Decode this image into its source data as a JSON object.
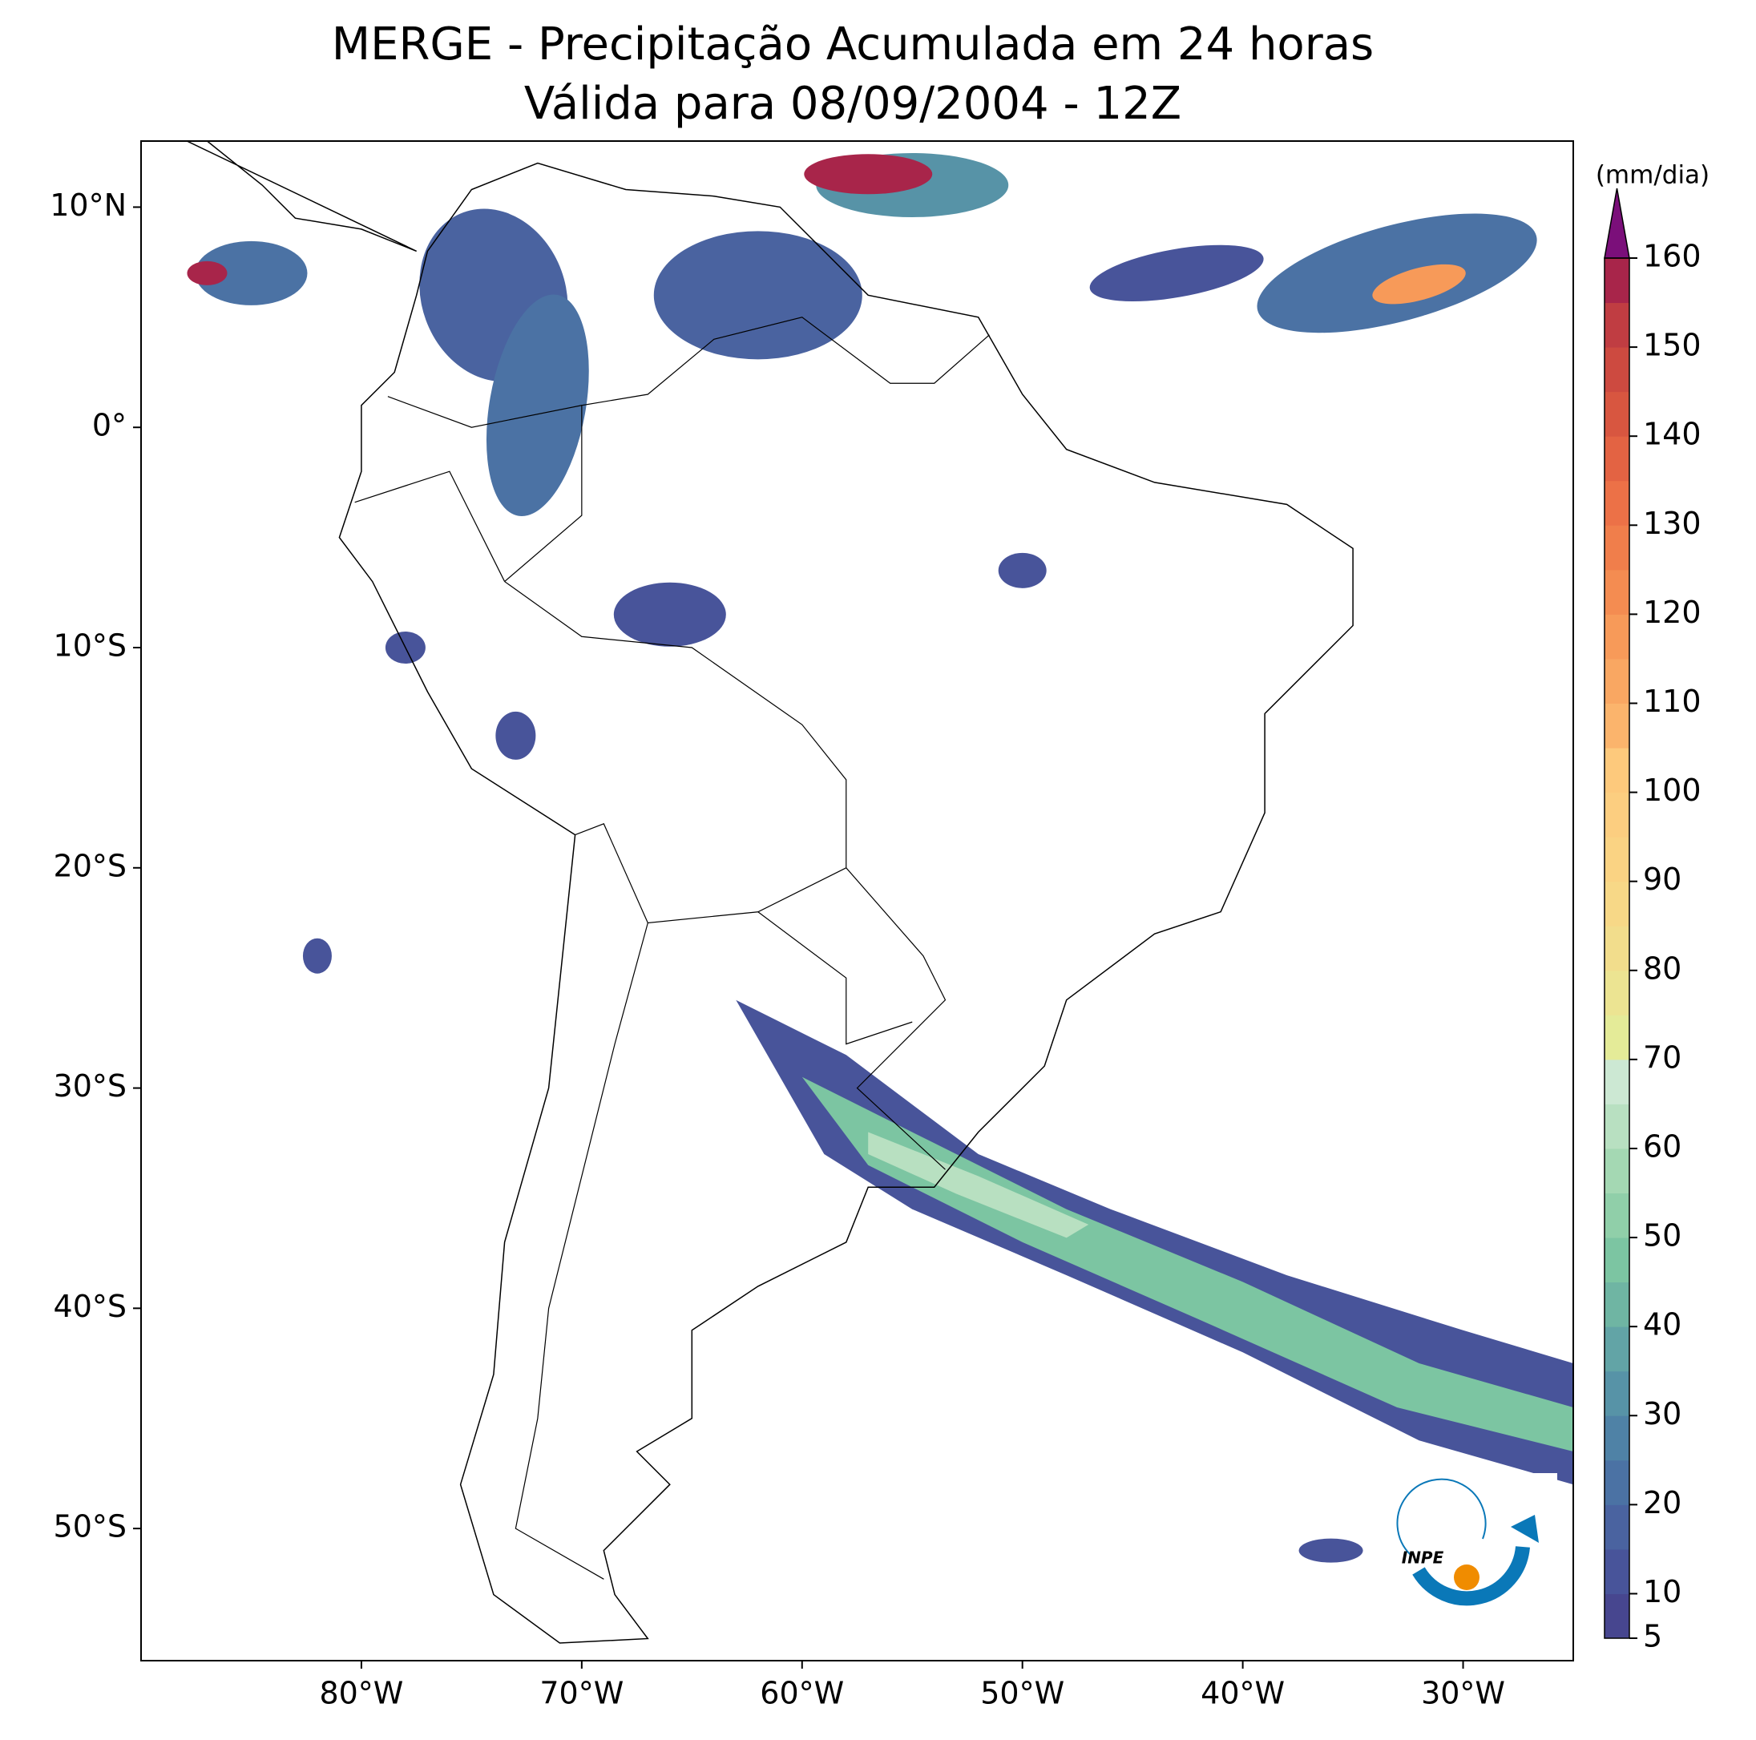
{
  "chart_data": {
    "type": "map",
    "title": "MERGE - Precipitação Acumulada em 24 horas",
    "subtitle": "Válida para 08/09/2004 - 12Z",
    "xlim": [
      -90,
      -25
    ],
    "ylim": [
      -56,
      13
    ],
    "xticks": [
      {
        "value": -80,
        "label": "80°W"
      },
      {
        "value": -70,
        "label": "70°W"
      },
      {
        "value": -60,
        "label": "60°W"
      },
      {
        "value": -50,
        "label": "50°W"
      },
      {
        "value": -40,
        "label": "40°W"
      },
      {
        "value": -30,
        "label": "30°W"
      }
    ],
    "yticks": [
      {
        "value": 10,
        "label": "10°N"
      },
      {
        "value": 0,
        "label": "0°"
      },
      {
        "value": -10,
        "label": "10°S"
      },
      {
        "value": -20,
        "label": "20°S"
      },
      {
        "value": -30,
        "label": "30°S"
      },
      {
        "value": -40,
        "label": "40°S"
      },
      {
        "value": -50,
        "label": "50°S"
      }
    ],
    "colorbar": {
      "label": "(mm/dia)",
      "lim": [
        5,
        160
      ],
      "ticks": [
        5,
        10,
        20,
        30,
        40,
        50,
        60,
        70,
        80,
        90,
        100,
        110,
        120,
        130,
        140,
        150,
        160
      ],
      "bounds": [
        5,
        10,
        15,
        20,
        25,
        30,
        35,
        40,
        45,
        50,
        55,
        60,
        65,
        70,
        75,
        80,
        85,
        90,
        95,
        100,
        105,
        110,
        115,
        120,
        125,
        130,
        135,
        140,
        145,
        150,
        155,
        160
      ],
      "colors": [
        "#47468f",
        "#48549a",
        "#4a63a0",
        "#4b72a4",
        "#4f82a6",
        "#5793a7",
        "#62a4a6",
        "#6fb5a3",
        "#7cc5a2",
        "#90cfa9",
        "#a4d8b3",
        "#b8e0c1",
        "#cce8d3",
        "#e4eb98",
        "#ece492",
        "#f2dd8c",
        "#f7d887",
        "#fad383",
        "#fcce80",
        "#fdc97c",
        "#fbb46c",
        "#f9a762",
        "#f79a59",
        "#f48c51",
        "#f07e4b",
        "#ec7147",
        "#e36343",
        "#d85640",
        "#cd4a40",
        "#c03d42",
        "#a8254a"
      ],
      "extend_color": "#7b0f7a"
    },
    "logo": "INPE"
  }
}
